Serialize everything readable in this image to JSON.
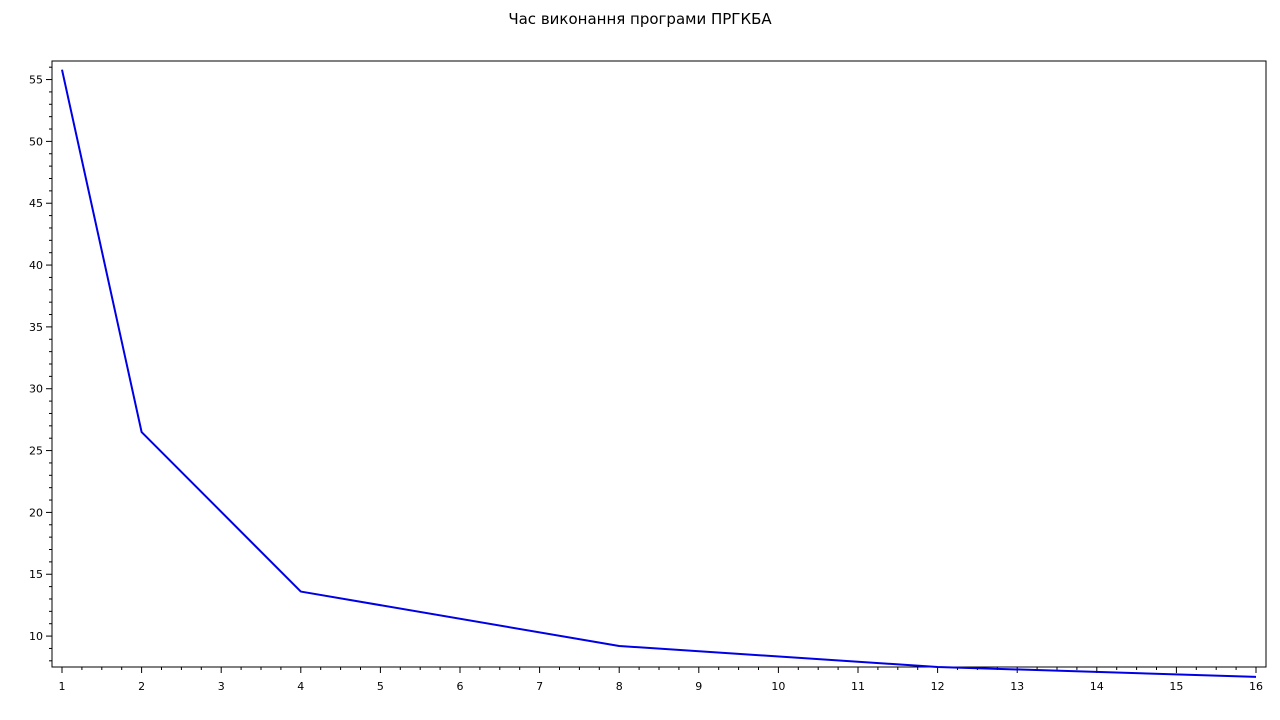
{
  "chart_data": {
    "type": "line",
    "title": "Час виконання програми ПРГКБА",
    "xlabel": "",
    "ylabel": "",
    "xlim": [
      1,
      16
    ],
    "ylim": [
      7.5,
      56.5
    ],
    "x_ticks": [
      1,
      2,
      3,
      4,
      5,
      6,
      7,
      8,
      9,
      10,
      11,
      12,
      13,
      14,
      15,
      16
    ],
    "y_ticks": [
      10,
      15,
      20,
      25,
      30,
      35,
      40,
      45,
      50,
      55
    ],
    "grid": false,
    "legend": "none",
    "series": [
      {
        "color": "#0000e6",
        "x": [
          1,
          2,
          4,
          8,
          12,
          16
        ],
        "y": [
          55.8,
          26.5,
          13.6,
          9.2,
          7.5,
          6.7
        ]
      }
    ]
  }
}
